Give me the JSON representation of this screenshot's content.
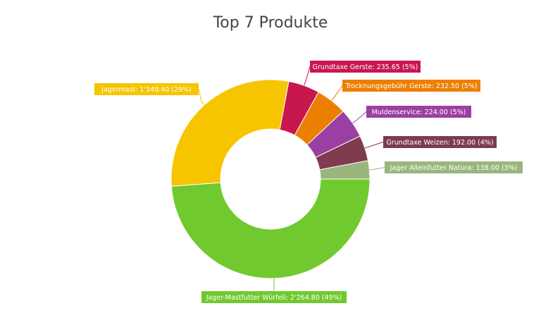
{
  "chart_data": {
    "type": "pie",
    "donut": true,
    "title": "Top 7 Produkte",
    "slices": [
      {
        "label": "Jager-Mastfutter Würfeli: 2'264.80 (49%)",
        "value": 2264.8,
        "color": "#70c92f"
      },
      {
        "label": "Jagermast: 1'349.40 (29%)",
        "value": 1349.4,
        "color": "#f7c400"
      },
      {
        "label": "Grundtaxe Gerste: 235.65 (5%)",
        "value": 235.65,
        "color": "#c8174f"
      },
      {
        "label": "Trocknungsgebühr Gerste: 232.50 (5%)",
        "value": 232.5,
        "color": "#ec7f00"
      },
      {
        "label": "Muldenservice: 224.00 (5%)",
        "value": 224.0,
        "color": "#9b3fa2"
      },
      {
        "label": "Grundtaxe Weizen: 192.00 (4%)",
        "value": 192.0,
        "color": "#7e3c4e"
      },
      {
        "label": "Jager Alleinfutter Natura: 138.00 (3%)",
        "value": 138.0,
        "color": "#9bb67c"
      }
    ]
  }
}
